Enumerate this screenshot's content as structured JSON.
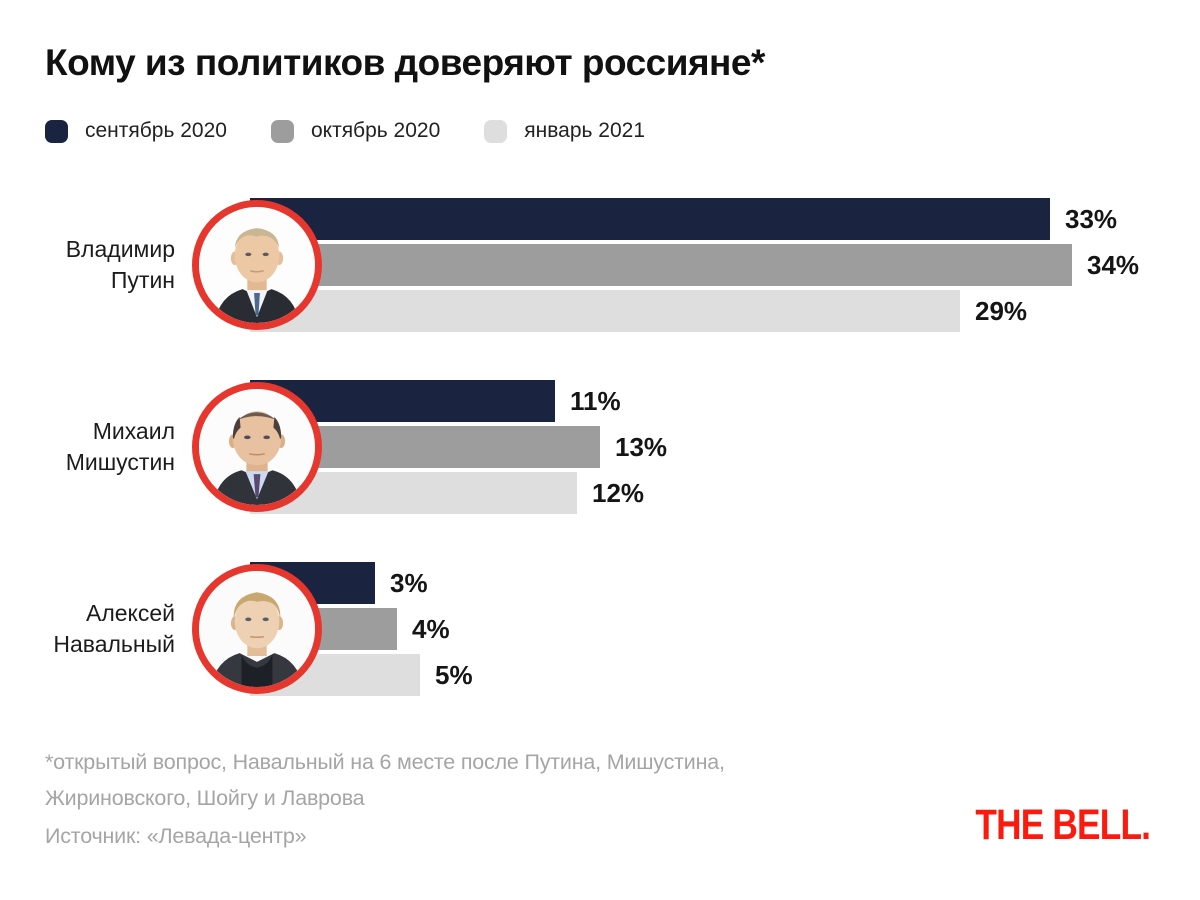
{
  "title": "Кому из политиков доверяют россияне*",
  "legend": [
    {
      "label": "сентябрь 2020",
      "color": "#1a2340"
    },
    {
      "label": "октябрь 2020",
      "color": "#9d9d9d"
    },
    {
      "label": "январь 2021",
      "color": "#dedede"
    }
  ],
  "chart_data": {
    "type": "bar",
    "orientation": "horizontal",
    "unit": "%",
    "title": "Кому из политиков доверяют россияне*",
    "series_names": [
      "сентябрь 2020",
      "октябрь 2020",
      "январь 2021"
    ],
    "series_colors": [
      "#1a2340",
      "#9d9d9d",
      "#dedede"
    ],
    "categories": [
      "Владимир Путин",
      "Михаил Мишустин",
      "Алексей Навальный"
    ],
    "groups": [
      {
        "name": "Владимир\nПутин",
        "values": [
          33,
          34,
          29
        ],
        "labels": [
          "33%",
          "34%",
          "29%"
        ]
      },
      {
        "name": "Михаил\nМишустин",
        "values": [
          11,
          13,
          12
        ],
        "labels": [
          "11%",
          "13%",
          "12%"
        ]
      },
      {
        "name": "Алексей\nНавальный",
        "values": [
          3,
          4,
          5
        ],
        "labels": [
          "3%",
          "4%",
          "5%"
        ]
      }
    ],
    "xlim": [
      0,
      36
    ],
    "value_labels": true,
    "grid": false,
    "legend_position": "top"
  },
  "footnote": {
    "line1": "*открытый вопрос, Навальный на 6 месте после Путина, Мишустина,",
    "line2": "Жириновского, Шойгу и Лаврова",
    "source": "Источник: «Левада-центр»"
  },
  "logo": {
    "text": "THE BELL.",
    "color": "#fb1a0e"
  },
  "colors": {
    "background": "#ffffff",
    "avatar_ring": "#e6372e",
    "text_dark": "#151515",
    "text_muted": "#a5a5a5"
  }
}
